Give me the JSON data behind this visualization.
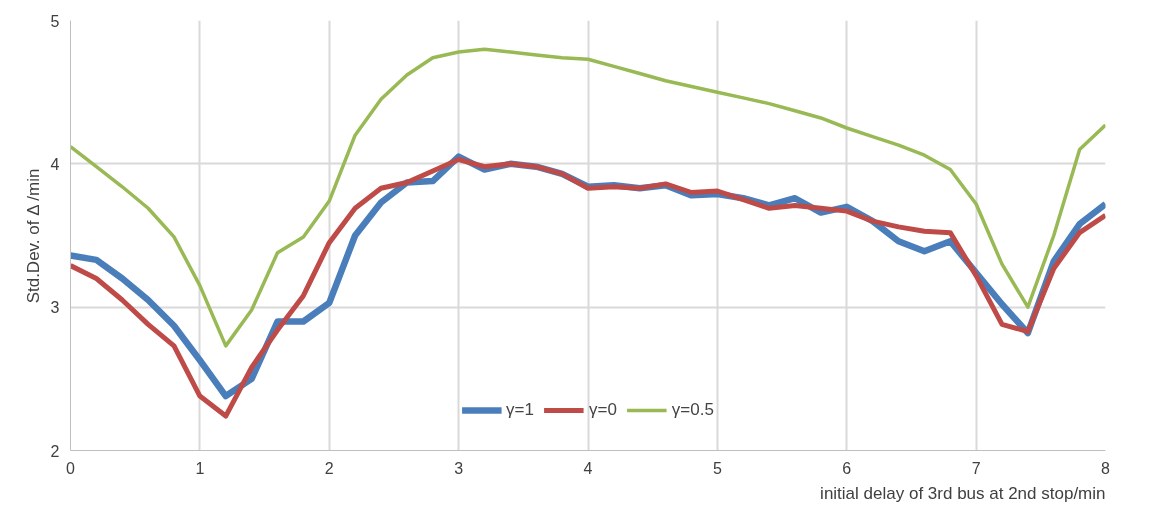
{
  "chart_data": {
    "type": "line",
    "xlabel": "initial delay of 3rd bus at 2nd stop/min",
    "ylabel": "Std.Dev. of Δ /min",
    "x": [
      0,
      0.2,
      0.4,
      0.6,
      0.8,
      1,
      1.2,
      1.4,
      1.6,
      1.8,
      2,
      2.2,
      2.4,
      2.6,
      2.8,
      3,
      3.2,
      3.4,
      3.6,
      3.8,
      4,
      4.2,
      4.4,
      4.6,
      4.8,
      5,
      5.2,
      5.4,
      5.6,
      5.8,
      6,
      6.2,
      6.4,
      6.6,
      6.8,
      7,
      7.2,
      7.4,
      7.6,
      7.8,
      8
    ],
    "series": [
      {
        "name": "γ=1",
        "color": "#4a7ebb",
        "values": [
          3.36,
          3.33,
          3.2,
          3.05,
          2.87,
          2.63,
          2.38,
          2.5,
          2.9,
          2.9,
          3.03,
          3.5,
          3.73,
          3.87,
          3.88,
          4.05,
          3.96,
          4.0,
          3.98,
          3.93,
          3.84,
          3.85,
          3.83,
          3.85,
          3.78,
          3.79,
          3.76,
          3.71,
          3.76,
          3.66,
          3.7,
          3.6,
          3.46,
          3.39,
          3.46,
          3.24,
          3.02,
          2.82,
          3.32,
          3.58,
          3.72
        ]
      },
      {
        "name": "γ=0",
        "color": "#be4b48",
        "values": [
          3.29,
          3.2,
          3.05,
          2.88,
          2.73,
          2.38,
          2.24,
          2.58,
          2.84,
          3.08,
          3.45,
          3.69,
          3.83,
          3.87,
          3.95,
          4.03,
          3.98,
          4.0,
          3.98,
          3.93,
          3.83,
          3.84,
          3.83,
          3.86,
          3.8,
          3.81,
          3.75,
          3.69,
          3.71,
          3.69,
          3.67,
          3.6,
          3.56,
          3.53,
          3.52,
          3.22,
          2.88,
          2.83,
          3.27,
          3.52,
          3.64
        ]
      },
      {
        "name": "γ=0.5",
        "color": "#98b954",
        "values": [
          4.12,
          3.98,
          3.84,
          3.69,
          3.49,
          3.15,
          2.73,
          2.98,
          3.38,
          3.49,
          3.74,
          4.2,
          4.45,
          4.62,
          4.74,
          4.78,
          4.8,
          4.78,
          4.76,
          4.74,
          4.73,
          4.68,
          4.63,
          4.58,
          4.54,
          4.5,
          4.46,
          4.42,
          4.37,
          4.32,
          4.25,
          4.19,
          4.13,
          4.06,
          3.96,
          3.72,
          3.3,
          3.0,
          3.5,
          4.1,
          4.27
        ]
      }
    ],
    "xlim": [
      0,
      8
    ],
    "xticks": [
      0,
      1,
      2,
      3,
      4,
      5,
      6,
      7,
      8
    ],
    "ylim": [
      2,
      5
    ],
    "yticks": [
      2,
      3,
      4,
      5
    ],
    "grid": true,
    "legend": "bottom",
    "marker": "none",
    "line_style": "solid"
  }
}
